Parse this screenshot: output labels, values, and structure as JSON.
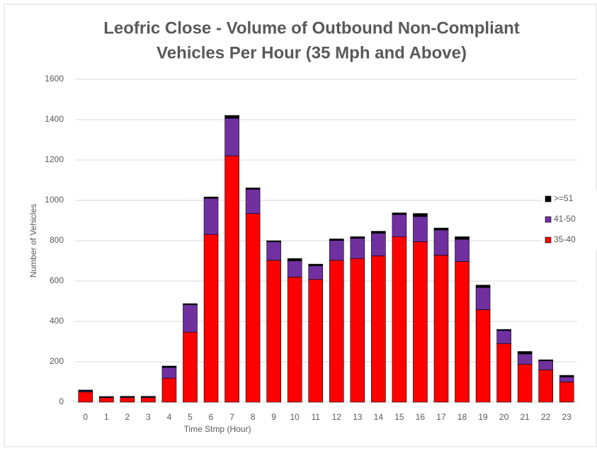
{
  "chart_data": {
    "type": "bar",
    "stacked": true,
    "title": [
      "Leofric Close - Volume of Outbound Non-Compliant",
      "Vehicles Per Hour (35 Mph and Above)"
    ],
    "x_label": "Time Stmp (Hour)",
    "y_label": "Number of Vehicles",
    "categories": [
      "0",
      "1",
      "2",
      "3",
      "4",
      "5",
      "6",
      "7",
      "8",
      "9",
      "10",
      "11",
      "12",
      "13",
      "14",
      "15",
      "16",
      "17",
      "18",
      "19",
      "20",
      "21",
      "22",
      "23"
    ],
    "series": [
      {
        "name": "35-40",
        "color": "#ff0000",
        "values": [
          50,
          22,
          22,
          22,
          119,
          347,
          831,
          1221,
          934,
          703,
          620,
          608,
          703,
          712,
          725,
          820,
          795,
          728,
          697,
          458,
          290,
          187,
          160,
          100
        ]
      },
      {
        "name": "41-50",
        "color": "#7030a0",
        "values": [
          5,
          3,
          4,
          4,
          53,
          136,
          179,
          186,
          121,
          91,
          80,
          68,
          98,
          100,
          112,
          110,
          125,
          125,
          110,
          110,
          65,
          52,
          45,
          25
        ]
      },
      {
        "name": ">=51",
        "color": "#000000",
        "values": [
          5,
          3,
          3,
          3,
          7,
          5,
          7,
          14,
          7,
          6,
          12,
          8,
          8,
          8,
          10,
          8,
          15,
          10,
          13,
          12,
          5,
          12,
          5,
          8
        ]
      }
    ],
    "ylim": [
      0,
      1600
    ],
    "yticks": [
      0,
      200,
      400,
      600,
      800,
      1000,
      1200,
      1400,
      1600
    ],
    "grid": true,
    "legend": "right"
  }
}
